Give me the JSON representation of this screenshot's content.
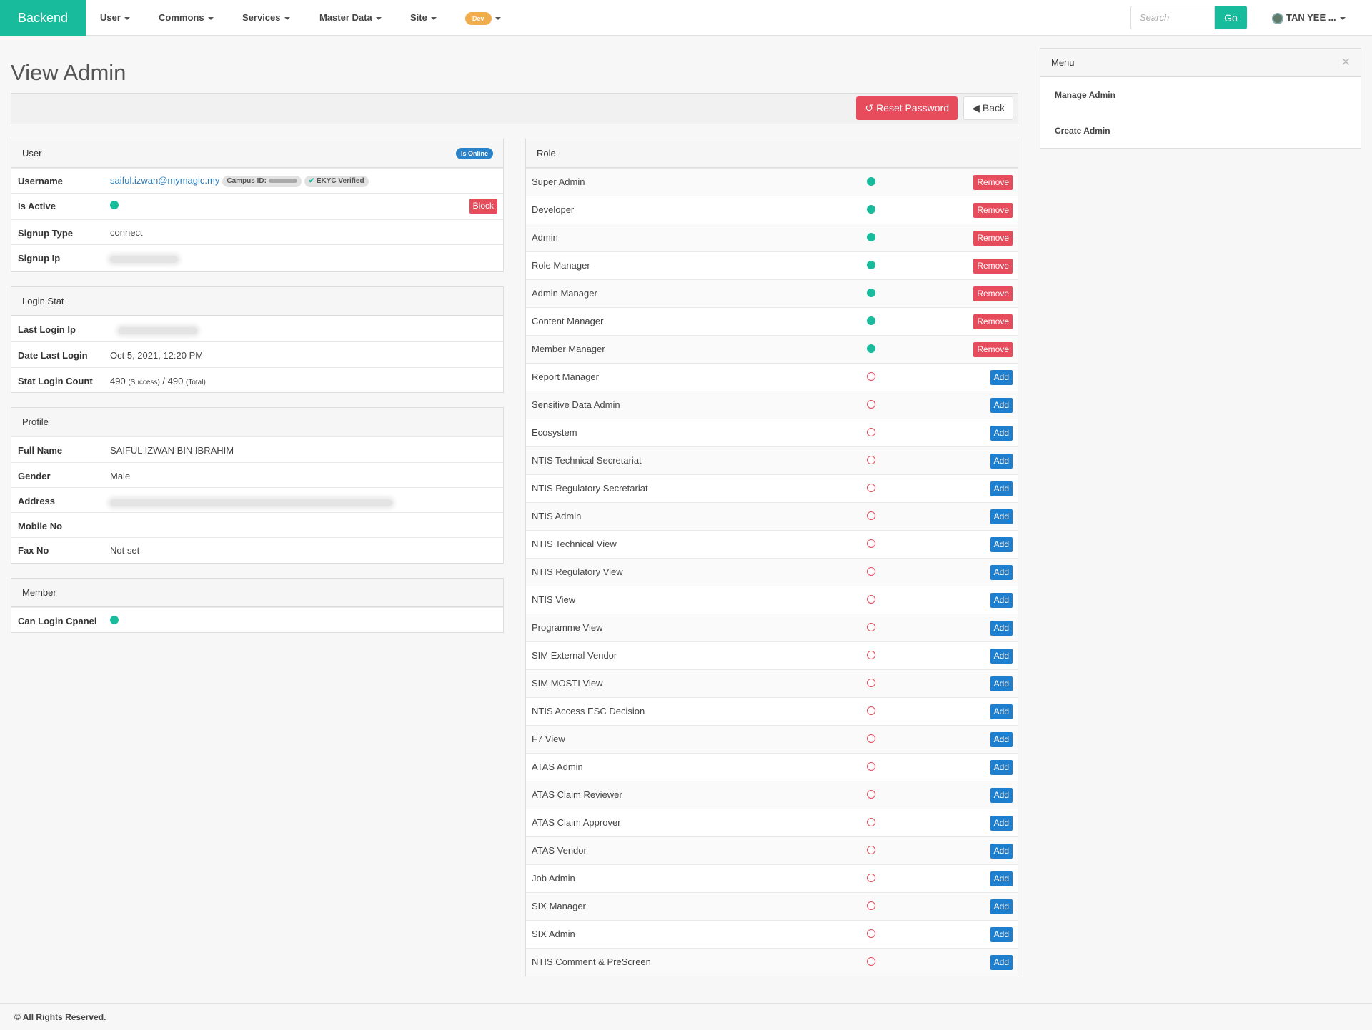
{
  "nav": {
    "brand": "Backend",
    "items": [
      {
        "label": "User"
      },
      {
        "label": "Commons"
      },
      {
        "label": "Services"
      },
      {
        "label": "Master Data"
      },
      {
        "label": "Site"
      }
    ],
    "env_badge": "Dev",
    "search_placeholder": "Search",
    "go_label": "Go",
    "user_name": "TAN YEE ..."
  },
  "page": {
    "title": "View Admin",
    "reset_password_label": "Reset Password",
    "back_label": "Back"
  },
  "user_panel": {
    "title": "User",
    "online_badge": "Is Online",
    "username_label": "Username",
    "username_value": "saiful.izwan@mymagic.my",
    "campus_id_label": "Campus ID:",
    "ekyc_label": "EKYC Verified",
    "is_active_label": "Is Active",
    "block_label": "Block",
    "signup_type_label": "Signup Type",
    "signup_type_value": "connect",
    "signup_ip_label": "Signup Ip"
  },
  "login_panel": {
    "title": "Login Stat",
    "last_login_ip_label": "Last Login Ip",
    "date_last_login_label": "Date Last Login",
    "date_last_login_value": "Oct 5, 2021, 12:20 PM",
    "stat_login_count_label": "Stat Login Count",
    "success_count": "490",
    "success_suffix": "(Success)",
    "separator": "/",
    "total_count": "490",
    "total_suffix": "(Total)"
  },
  "profile_panel": {
    "title": "Profile",
    "full_name_label": "Full Name",
    "full_name_value": "SAIFUL IZWAN BIN IBRAHIM",
    "gender_label": "Gender",
    "gender_value": "Male",
    "address_label": "Address",
    "mobile_label": "Mobile No",
    "fax_label": "Fax No",
    "fax_value": "Not set"
  },
  "member_panel": {
    "title": "Member",
    "can_login_label": "Can Login Cpanel"
  },
  "role_panel": {
    "title": "Role",
    "remove_label": "Remove",
    "add_label": "Add",
    "roles": [
      {
        "name": "Super Admin",
        "assigned": true
      },
      {
        "name": "Developer",
        "assigned": true
      },
      {
        "name": "Admin",
        "assigned": true
      },
      {
        "name": "Role Manager",
        "assigned": true
      },
      {
        "name": "Admin Manager",
        "assigned": true
      },
      {
        "name": "Content Manager",
        "assigned": true
      },
      {
        "name": "Member Manager",
        "assigned": true
      },
      {
        "name": "Report Manager",
        "assigned": false
      },
      {
        "name": "Sensitive Data Admin",
        "assigned": false
      },
      {
        "name": "Ecosystem",
        "assigned": false
      },
      {
        "name": "NTIS Technical Secretariat",
        "assigned": false
      },
      {
        "name": "NTIS Regulatory Secretariat",
        "assigned": false
      },
      {
        "name": "NTIS Admin",
        "assigned": false
      },
      {
        "name": "NTIS Technical View",
        "assigned": false
      },
      {
        "name": "NTIS Regulatory View",
        "assigned": false
      },
      {
        "name": "NTIS View",
        "assigned": false
      },
      {
        "name": "Programme View",
        "assigned": false
      },
      {
        "name": "SIM External Vendor",
        "assigned": false
      },
      {
        "name": "SIM MOSTI View",
        "assigned": false
      },
      {
        "name": "NTIS Access ESC Decision",
        "assigned": false
      },
      {
        "name": "F7 View",
        "assigned": false
      },
      {
        "name": "ATAS Admin",
        "assigned": false
      },
      {
        "name": "ATAS Claim Reviewer",
        "assigned": false
      },
      {
        "name": "ATAS Claim Approver",
        "assigned": false
      },
      {
        "name": "ATAS Vendor",
        "assigned": false
      },
      {
        "name": "Job Admin",
        "assigned": false
      },
      {
        "name": "SIX Manager",
        "assigned": false
      },
      {
        "name": "SIX Admin",
        "assigned": false
      },
      {
        "name": "NTIS Comment & PreScreen",
        "assigned": false
      }
    ]
  },
  "side_menu": {
    "title": "Menu",
    "items": [
      {
        "label": "Manage Admin"
      },
      {
        "label": "Create Admin"
      }
    ]
  },
  "footer": {
    "text": "© All Rights Reserved."
  },
  "colors": {
    "brand": "#18bc9c",
    "danger": "#e74c5c",
    "primary": "#1f7fcf"
  }
}
